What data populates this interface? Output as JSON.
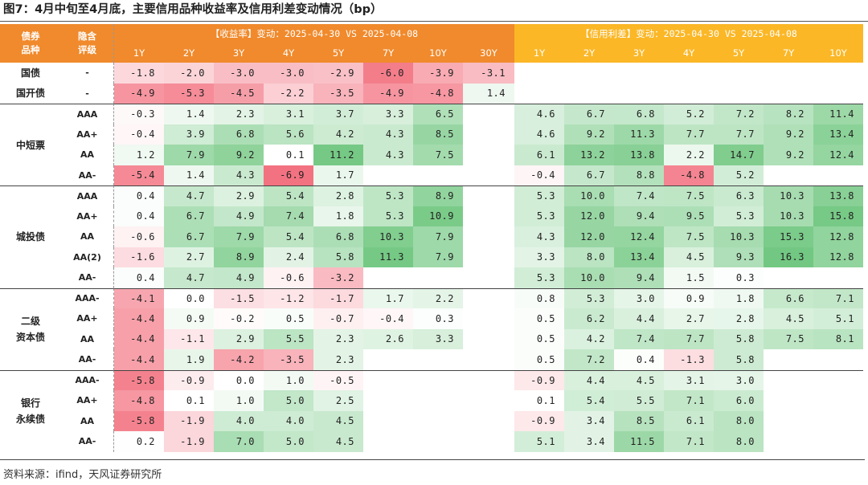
{
  "figure": {
    "title": "图7：4月中旬至4月底，主要信用品种收益率及信用利差变动情况（bp）",
    "source": "资料来源：ifind，天风证券研究所"
  },
  "table": {
    "col_headers": {
      "category": "债券\n品种",
      "rating": "隐含\n评级",
      "yield_group": "【收益率】变动：2025-04-30 VS 2025-04-08",
      "spread_group": "【信用利差】变动：2025-04-30 VS 2025-04-08",
      "yield_periods": [
        "1Y",
        "2Y",
        "3Y",
        "4Y",
        "5Y",
        "7Y",
        "10Y",
        "30Y"
      ],
      "spread_periods": [
        "1Y",
        "2Y",
        "3Y",
        "4Y",
        "5Y",
        "7Y",
        "10Y"
      ]
    },
    "colors": {
      "header_orange": "#f08a2c",
      "header_yellow": "#fbb726",
      "negative": "#f26b7a",
      "positive": "#5cbf6e"
    },
    "groups": [
      {
        "name": "",
        "rows": [
          {
            "category": "国债",
            "rating": "-",
            "yield": [
              "-1.8",
              "-2.0",
              "-3.0",
              "-3.0",
              "-2.9",
              "-6.0",
              "-3.9",
              "-3.1"
            ],
            "spread": [
              "",
              "",
              "",
              "",
              "",
              "",
              ""
            ]
          },
          {
            "category": "国开债",
            "rating": "-",
            "yield": [
              "-4.9",
              "-5.3",
              "-4.5",
              "-2.2",
              "-3.5",
              "-4.9",
              "-4.8",
              "1.4"
            ],
            "spread": [
              "",
              "",
              "",
              "",
              "",
              "",
              ""
            ]
          }
        ]
      },
      {
        "name": "中短票",
        "rows": [
          {
            "rating": "AAA",
            "yield": [
              "-0.3",
              "1.4",
              "2.3",
              "3.1",
              "3.7",
              "3.3",
              "6.5",
              ""
            ],
            "spread": [
              "4.6",
              "6.7",
              "6.8",
              "5.2",
              "7.2",
              "8.2",
              "11.4"
            ]
          },
          {
            "rating": "AA+",
            "yield": [
              "-0.4",
              "3.9",
              "6.8",
              "5.6",
              "4.2",
              "4.3",
              "8.5",
              ""
            ],
            "spread": [
              "4.6",
              "9.2",
              "11.3",
              "7.7",
              "7.7",
              "9.2",
              "13.4"
            ]
          },
          {
            "rating": "AA",
            "yield": [
              "1.2",
              "7.9",
              "9.2",
              "0.1",
              "11.2",
              "4.3",
              "7.5",
              ""
            ],
            "spread": [
              "6.1",
              "13.2",
              "13.8",
              "2.2",
              "14.7",
              "9.2",
              "12.4"
            ]
          },
          {
            "rating": "AA-",
            "yield": [
              "-5.4",
              "1.4",
              "4.3",
              "-6.9",
              "1.7",
              "",
              "",
              ""
            ],
            "spread": [
              "-0.4",
              "6.7",
              "8.8",
              "-4.8",
              "5.2",
              "",
              ""
            ]
          }
        ]
      },
      {
        "name": "城投债",
        "rows": [
          {
            "rating": "AAA",
            "yield": [
              "0.4",
              "4.7",
              "2.9",
              "5.4",
              "2.8",
              "5.3",
              "8.9",
              ""
            ],
            "spread": [
              "5.3",
              "10.0",
              "7.4",
              "7.5",
              "6.3",
              "10.3",
              "13.8"
            ]
          },
          {
            "rating": "AA+",
            "yield": [
              "0.4",
              "6.7",
              "4.9",
              "7.4",
              "1.8",
              "5.3",
              "10.9",
              ""
            ],
            "spread": [
              "5.3",
              "12.0",
              "9.4",
              "9.5",
              "5.3",
              "10.3",
              "15.8"
            ]
          },
          {
            "rating": "AA",
            "yield": [
              "-0.6",
              "6.7",
              "7.9",
              "5.4",
              "6.8",
              "10.3",
              "7.9",
              ""
            ],
            "spread": [
              "4.3",
              "12.0",
              "12.4",
              "7.5",
              "10.3",
              "15.3",
              "12.8"
            ]
          },
          {
            "rating": "AA(2)",
            "yield": [
              "-1.6",
              "2.7",
              "8.9",
              "2.4",
              "5.8",
              "11.3",
              "7.9",
              ""
            ],
            "spread": [
              "3.3",
              "8.0",
              "13.4",
              "4.5",
              "9.3",
              "16.3",
              "12.8"
            ]
          },
          {
            "rating": "AA-",
            "yield": [
              "0.4",
              "4.7",
              "4.9",
              "-0.6",
              "-3.2",
              "",
              "",
              ""
            ],
            "spread": [
              "5.3",
              "10.0",
              "9.4",
              "1.5",
              "0.3",
              "",
              ""
            ]
          }
        ]
      },
      {
        "name": "二级\n资本债",
        "rows": [
          {
            "rating": "AAA-",
            "yield": [
              "-4.1",
              "0.0",
              "-1.5",
              "-1.2",
              "-1.7",
              "1.7",
              "2.2",
              ""
            ],
            "spread": [
              "0.8",
              "5.3",
              "3.0",
              "0.9",
              "1.8",
              "6.6",
              "7.1"
            ]
          },
          {
            "rating": "AA+",
            "yield": [
              "-4.4",
              "0.9",
              "-0.2",
              "0.5",
              "-0.7",
              "-0.4",
              "0.3",
              ""
            ],
            "spread": [
              "0.5",
              "6.2",
              "4.4",
              "2.7",
              "2.8",
              "4.5",
              "5.1"
            ]
          },
          {
            "rating": "AA",
            "yield": [
              "-4.4",
              "-1.1",
              "2.9",
              "5.5",
              "2.3",
              "2.6",
              "3.3",
              ""
            ],
            "spread": [
              "0.5",
              "4.2",
              "7.4",
              "7.7",
              "5.8",
              "7.5",
              "8.1"
            ]
          },
          {
            "rating": "AA-",
            "yield": [
              "-4.4",
              "1.9",
              "-4.2",
              "-3.5",
              "2.3",
              "",
              "",
              ""
            ],
            "spread": [
              "0.5",
              "7.2",
              "0.4",
              "-1.3",
              "5.8",
              "",
              ""
            ]
          }
        ]
      },
      {
        "name": "银行\n永续债",
        "rows": [
          {
            "rating": "AAA-",
            "yield": [
              "-5.8",
              "-0.9",
              "0.0",
              "1.0",
              "-0.5",
              "",
              "",
              ""
            ],
            "spread": [
              "-0.9",
              "4.4",
              "4.5",
              "3.1",
              "3.0",
              "",
              ""
            ]
          },
          {
            "rating": "AA+",
            "yield": [
              "-4.8",
              "0.1",
              "1.0",
              "5.0",
              "2.5",
              "",
              "",
              ""
            ],
            "spread": [
              "0.1",
              "5.4",
              "5.5",
              "7.1",
              "6.0",
              "",
              ""
            ]
          },
          {
            "rating": "AA",
            "yield": [
              "-5.8",
              "-1.9",
              "4.0",
              "4.0",
              "4.5",
              "",
              "",
              ""
            ],
            "spread": [
              "-0.9",
              "3.4",
              "8.5",
              "6.1",
              "8.0",
              "",
              ""
            ]
          },
          {
            "rating": "AA-",
            "yield": [
              "0.2",
              "-1.9",
              "7.0",
              "5.0",
              "4.5",
              "",
              "",
              ""
            ],
            "spread": [
              "5.1",
              "3.4",
              "11.5",
              "7.1",
              "8.0",
              "",
              ""
            ]
          }
        ]
      }
    ]
  }
}
